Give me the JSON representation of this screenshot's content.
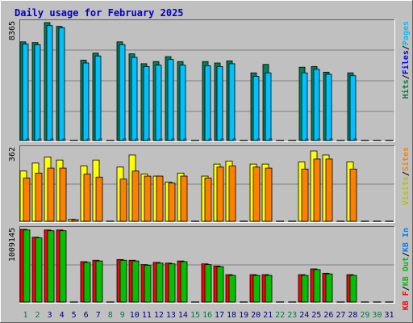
{
  "title": "Daily usage for February 2025",
  "colors": {
    "frame_bg": "#c0c0c0",
    "plot_bg": "#c0c0c0",
    "title": "#0000cc",
    "grid": "#808080",
    "bar_edge": "#000000",
    "hits": "#00805c",
    "files": "#00c0ff",
    "pages": "#00c0ff",
    "visits": "#ffff00",
    "sites": "#ff8000",
    "kb_in": "#00c000",
    "kb_f": "#ff0000",
    "kb_out": "#00c000",
    "weekday_text": "#000080",
    "weekend_text": "#008040"
  },
  "chart_data": {
    "type": "bar",
    "title": "Daily usage for February 2025",
    "categories": [
      "1",
      "2",
      "3",
      "4",
      "5",
      "6",
      "7",
      "8",
      "9",
      "10",
      "11",
      "12",
      "13",
      "14",
      "15",
      "16",
      "17",
      "18",
      "19",
      "20",
      "21",
      "22",
      "23",
      "24",
      "25",
      "26",
      "27",
      "28",
      "29",
      "30",
      "31"
    ],
    "weekend_days": [
      "1",
      "2",
      "8",
      "9",
      "15",
      "16",
      "22",
      "23",
      "29",
      "30"
    ],
    "days_with_data": 28,
    "grid": true,
    "panels": [
      {
        "id": "hits",
        "max_label": "8365",
        "ymax": 8365,
        "legend": [
          {
            "text": "Hits",
            "color": "#008040"
          },
          {
            "text": "/",
            "color": "#000000"
          },
          {
            "text": "Files",
            "color": "#0000ff"
          },
          {
            "text": "/",
            "color": "#000000"
          },
          {
            "text": "Pages",
            "color": "#00c0ff"
          }
        ],
        "series": [
          {
            "name": "Hits",
            "color": "#00805c",
            "values": [
              7000,
              6950,
              8365,
              8100,
              null,
              5700,
              6200,
              null,
              7000,
              6150,
              5450,
              5600,
              5950,
              5600,
              null,
              5600,
              5500,
              5650,
              null,
              4800,
              5400,
              null,
              null,
              5200,
              5250,
              4850,
              null,
              4800,
              null,
              null,
              null
            ]
          },
          {
            "name": "Files",
            "color": "#00c0ff",
            "values": [
              6850,
              6800,
              8150,
              8000,
              null,
              5500,
              6000,
              null,
              6800,
              5900,
              5250,
              5350,
              5750,
              5350,
              null,
              5300,
              5250,
              5450,
              null,
              4550,
              4800,
              null,
              null,
              4800,
              5050,
              4700,
              null,
              4600,
              null,
              null,
              null
            ]
          },
          {
            "name": "Pages",
            "color": "#00c0ff",
            "values": [
              0,
              0,
              0,
              0,
              null,
              0,
              0,
              null,
              0,
              0,
              0,
              0,
              0,
              0,
              null,
              0,
              0,
              0,
              null,
              0,
              0,
              null,
              null,
              0,
              0,
              0,
              null,
              0,
              null,
              null,
              null
            ]
          }
        ]
      },
      {
        "id": "visits",
        "max_label": "362",
        "ymax": 362,
        "legend": [
          {
            "text": "Visits",
            "color": "#c0c000"
          },
          {
            "text": "/",
            "color": "#000000"
          },
          {
            "text": "Sites",
            "color": "#ff8000"
          }
        ],
        "series": [
          {
            "name": "Visits",
            "color": "#ffff00",
            "values": [
              250,
              290,
              320,
              305,
              10,
              275,
              305,
              null,
              270,
              330,
              235,
              225,
              195,
              240,
              null,
              225,
              285,
              300,
              null,
              285,
              285,
              null,
              null,
              295,
              350,
              330,
              null,
              295,
              null,
              null,
              null
            ]
          },
          {
            "name": "Sites",
            "color": "#ff8000",
            "values": [
              215,
              240,
              265,
              265,
              8,
              235,
              220,
              null,
              210,
              250,
              225,
              225,
              190,
              225,
              null,
              215,
              270,
              275,
              null,
              270,
              265,
              null,
              null,
              260,
              310,
              310,
              null,
              260,
              null,
              null,
              null
            ]
          }
        ]
      },
      {
        "id": "kbytes",
        "max_label": "1009145",
        "ymax": 1009145,
        "legend": [
          {
            "text": "KB F",
            "color": "#ff0000"
          },
          {
            "text": "/",
            "color": "#000000"
          },
          {
            "text": "KB Out",
            "color": "#00c000"
          },
          {
            "text": "/",
            "color": "#000000"
          },
          {
            "text": "KB In",
            "color": "#0080ff"
          }
        ],
        "series": [
          {
            "name": "KB F",
            "color": "#ff0000",
            "values": [
              1009145,
              900000,
              1000000,
              1000000,
              null,
              560000,
              580000,
              null,
              590000,
              580000,
              520000,
              550000,
              540000,
              570000,
              null,
              530000,
              500000,
              380000,
              null,
              380000,
              380000,
              null,
              null,
              380000,
              460000,
              400000,
              null,
              380000,
              null,
              null,
              null
            ]
          },
          {
            "name": "KB Out",
            "color": "#00c000",
            "values": [
              1000000,
              890000,
              990000,
              990000,
              null,
              550000,
              570000,
              null,
              580000,
              570000,
              510000,
              540000,
              530000,
              560000,
              null,
              520000,
              490000,
              370000,
              null,
              370000,
              370000,
              null,
              null,
              370000,
              450000,
              390000,
              null,
              370000,
              null,
              null,
              null
            ]
          }
        ]
      }
    ]
  }
}
